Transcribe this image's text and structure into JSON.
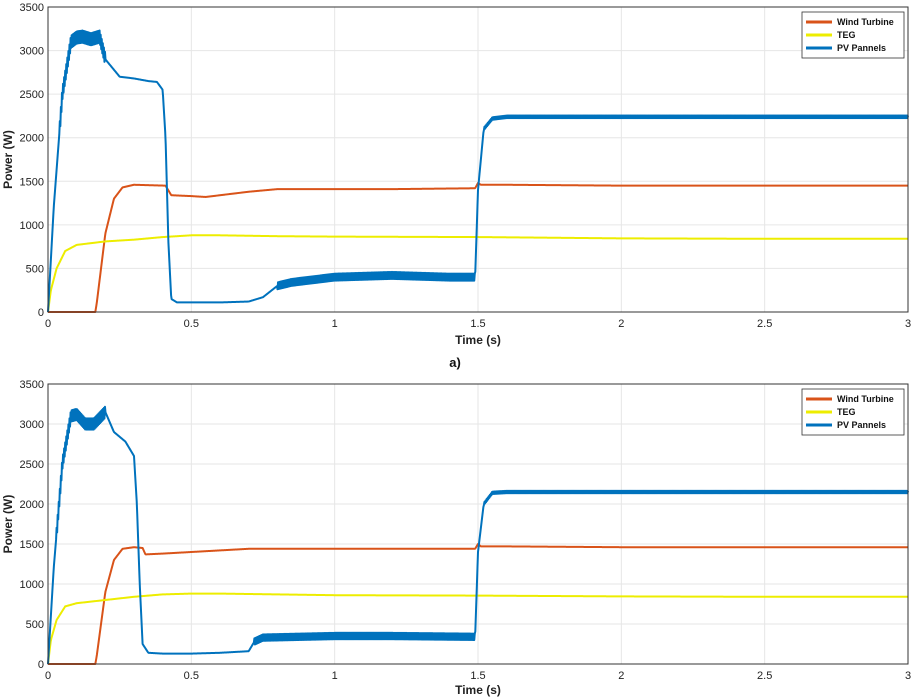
{
  "colors": {
    "wind": "#D95319",
    "teg": "#EDED00",
    "pv": "#0072BD",
    "grid": "#e6e6e6",
    "axis": "#333333"
  },
  "subplot_label": "a)",
  "chart_data": [
    {
      "type": "line",
      "xlabel": "Time (s)",
      "ylabel": "Power (W)",
      "xlim": [
        0,
        3
      ],
      "ylim": [
        0,
        3500
      ],
      "xticks": [
        "0",
        "0.5",
        "1",
        "1.5",
        "2",
        "2.5",
        "3"
      ],
      "yticks": [
        "0",
        "500",
        "1000",
        "1500",
        "2000",
        "2500",
        "3000",
        "3500"
      ],
      "grid": true,
      "legend_position": "top-right",
      "series": [
        {
          "name": "Wind Turbine",
          "color": "#D95319",
          "x": [
            0,
            0.165,
            0.17,
            0.2,
            0.23,
            0.26,
            0.3,
            0.41,
            0.43,
            0.5,
            0.55,
            0.6,
            0.7,
            0.8,
            1.0,
            1.2,
            1.49,
            1.5,
            1.51,
            1.6,
            2.0,
            2.5,
            3.0
          ],
          "y": [
            0,
            0,
            100,
            900,
            1300,
            1430,
            1460,
            1450,
            1340,
            1330,
            1320,
            1340,
            1380,
            1410,
            1410,
            1410,
            1420,
            1480,
            1460,
            1460,
            1450,
            1450,
            1450
          ]
        },
        {
          "name": "TEG",
          "color": "#EDED00",
          "x": [
            0,
            0.01,
            0.03,
            0.06,
            0.1,
            0.15,
            0.2,
            0.3,
            0.4,
            0.5,
            0.6,
            0.8,
            1.0,
            1.5,
            2.0,
            2.5,
            3.0
          ],
          "y": [
            0,
            250,
            500,
            700,
            770,
            790,
            810,
            830,
            860,
            880,
            880,
            870,
            865,
            860,
            845,
            840,
            840
          ]
        },
        {
          "name": "PV Pannels",
          "color": "#0072BD",
          "x": [
            0,
            0.02,
            0.05,
            0.08,
            0.1,
            0.12,
            0.15,
            0.18,
            0.2,
            0.25,
            0.3,
            0.35,
            0.38,
            0.4,
            0.41,
            0.42,
            0.43,
            0.45,
            0.5,
            0.6,
            0.7,
            0.75,
            0.8,
            0.85,
            1.0,
            1.2,
            1.4,
            1.49,
            1.5,
            1.52,
            1.55,
            1.6,
            2.0,
            2.5,
            3.0
          ],
          "y": [
            0,
            1200,
            2500,
            3100,
            3150,
            3160,
            3130,
            3160,
            2900,
            2700,
            2680,
            2650,
            2640,
            2550,
            2000,
            800,
            150,
            110,
            110,
            110,
            120,
            170,
            300,
            340,
            400,
            420,
            400,
            400,
            1400,
            2100,
            2220,
            2240,
            2240,
            2240,
            2240
          ],
          "osc_x": [
            [
              0.04,
              0.2,
              70
            ],
            [
              0.8,
              1.49,
              40
            ],
            [
              1.52,
              3.0,
              15
            ]
          ]
        }
      ]
    },
    {
      "type": "line",
      "xlabel": "Time (s)",
      "ylabel": "Power (W)",
      "xlim": [
        0,
        3
      ],
      "ylim": [
        0,
        3500
      ],
      "xticks": [
        "0",
        "0.5",
        "1",
        "1.5",
        "2",
        "2.5",
        "3"
      ],
      "yticks": [
        "0",
        "500",
        "1000",
        "1500",
        "2000",
        "2500",
        "3000",
        "3500"
      ],
      "grid": true,
      "legend_position": "top-right",
      "series": [
        {
          "name": "Wind Turbine",
          "color": "#D95319",
          "x": [
            0,
            0.165,
            0.17,
            0.2,
            0.23,
            0.26,
            0.3,
            0.33,
            0.34,
            0.4,
            0.5,
            0.6,
            0.7,
            0.8,
            1.0,
            1.2,
            1.49,
            1.5,
            1.51,
            1.6,
            2.0,
            2.5,
            3.0
          ],
          "y": [
            0,
            0,
            100,
            900,
            1300,
            1440,
            1460,
            1450,
            1370,
            1380,
            1400,
            1420,
            1440,
            1440,
            1440,
            1440,
            1440,
            1500,
            1470,
            1470,
            1460,
            1460,
            1460
          ]
        },
        {
          "name": "TEG",
          "color": "#EDED00",
          "x": [
            0,
            0.01,
            0.03,
            0.06,
            0.1,
            0.15,
            0.2,
            0.3,
            0.4,
            0.5,
            0.6,
            0.8,
            1.0,
            1.5,
            2.0,
            2.5,
            3.0
          ],
          "y": [
            0,
            300,
            550,
            720,
            760,
            780,
            800,
            840,
            870,
            880,
            880,
            870,
            860,
            855,
            845,
            840,
            840
          ]
        },
        {
          "name": "PV Pannels",
          "color": "#0072BD",
          "x": [
            0,
            0.02,
            0.05,
            0.08,
            0.1,
            0.13,
            0.16,
            0.2,
            0.23,
            0.27,
            0.3,
            0.31,
            0.32,
            0.33,
            0.35,
            0.4,
            0.5,
            0.6,
            0.7,
            0.72,
            0.75,
            1.0,
            1.2,
            1.49,
            1.5,
            1.52,
            1.55,
            1.6,
            2.0,
            2.5,
            3.0
          ],
          "y": [
            0,
            1200,
            2500,
            3100,
            3120,
            3000,
            3000,
            3150,
            2900,
            2780,
            2600,
            2000,
            1000,
            250,
            140,
            130,
            130,
            140,
            160,
            280,
            330,
            350,
            350,
            340,
            1400,
            2000,
            2140,
            2150,
            2150,
            2150,
            2150
          ],
          "osc_x": [
            [
              0.03,
              0.2,
              70
            ],
            [
              0.72,
              1.49,
              40
            ],
            [
              1.52,
              3.0,
              15
            ]
          ]
        }
      ]
    }
  ]
}
